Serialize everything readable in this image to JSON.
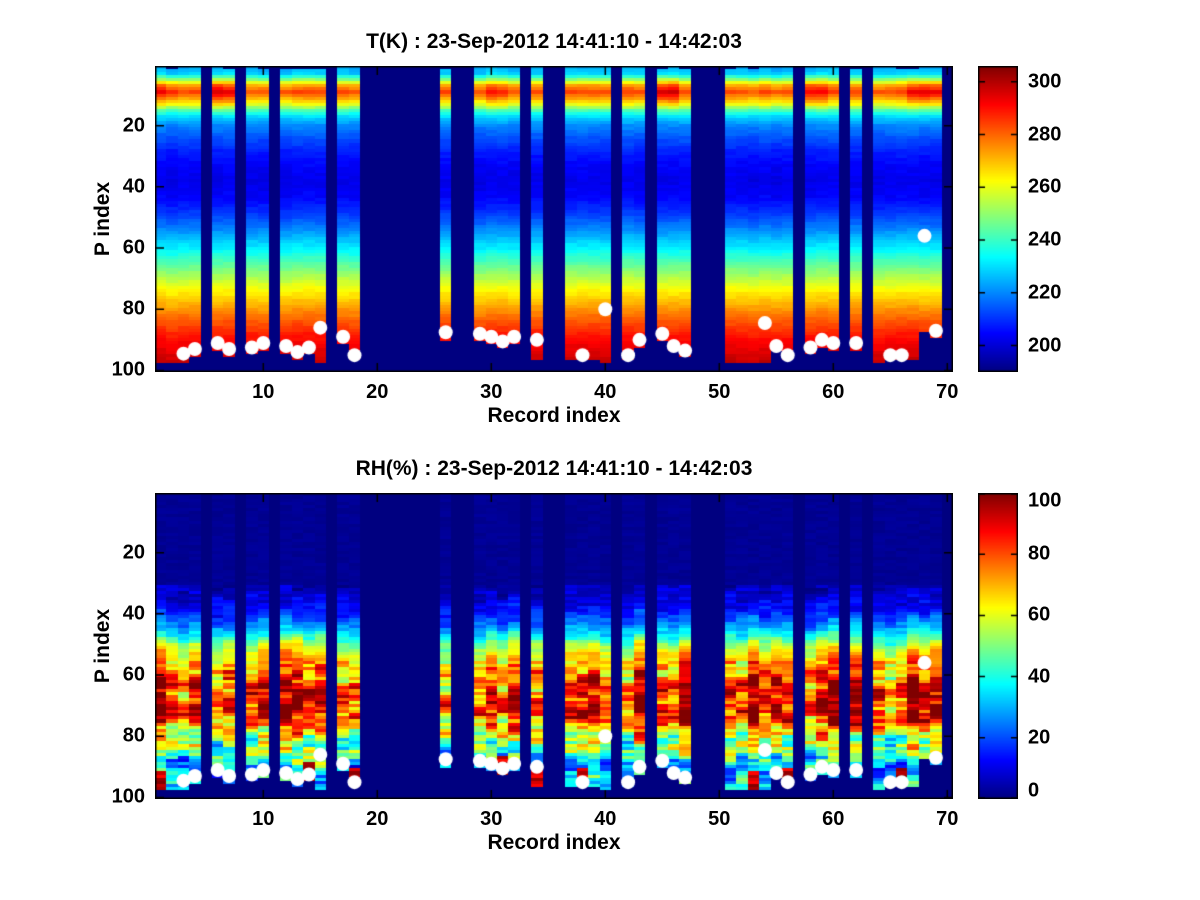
{
  "figure": {
    "background": "#ffffff",
    "text_color": "#000000",
    "axis_color": "#000000",
    "marker_color": "#ffffff"
  },
  "chart_data": [
    {
      "type": "heatmap",
      "title": "T(K) : 23-Sep-2012 14:41:10 - 14:42:03",
      "xlabel": "Record index",
      "ylabel": "P index",
      "x_ticks": [
        10,
        20,
        30,
        40,
        50,
        60,
        70
      ],
      "y_ticks": [
        20,
        40,
        60,
        80,
        100
      ],
      "x_range": [
        0.5,
        70.5
      ],
      "y_range": [
        0.5,
        100.5
      ],
      "y_axis_reversed": true,
      "n_records": 70,
      "n_levels": 100,
      "colormap": "jet",
      "grid": false,
      "colorbar": {
        "min": 190,
        "max": 306,
        "ticks": [
          200,
          220,
          240,
          260,
          280,
          300
        ]
      },
      "missing_records": [
        5,
        8,
        11,
        16,
        19,
        20,
        21,
        22,
        23,
        24,
        25,
        27,
        28,
        33,
        35,
        36,
        41,
        44,
        48,
        49,
        50,
        57,
        61,
        63,
        70
      ],
      "surface_p": [
        97.5,
        97.5,
        97,
        95.5,
        null,
        93.5,
        95,
        null,
        94.5,
        93,
        null,
        94,
        96,
        94.5,
        97,
        null,
        91,
        96.5,
        null,
        null,
        null,
        null,
        null,
        null,
        null,
        90,
        null,
        null,
        90,
        91,
        92.5,
        91,
        null,
        96,
        null,
        null,
        96,
        96.5,
        96,
        97,
        null,
        96.5,
        92,
        null,
        90,
        93.5,
        95,
        null,
        null,
        null,
        97,
        97,
        97,
        97,
        93.5,
        96.5,
        null,
        94,
        92,
        93,
        null,
        93,
        null,
        97,
        96.5,
        96.5,
        96.5,
        87,
        89,
        null
      ],
      "profile": [
        [
          1,
          224
        ],
        [
          3,
          228
        ],
        [
          5,
          248
        ],
        [
          7,
          272
        ],
        [
          9,
          283
        ],
        [
          11,
          272
        ],
        [
          13,
          260
        ],
        [
          15,
          242
        ],
        [
          17,
          230
        ],
        [
          20,
          220
        ],
        [
          24,
          214
        ],
        [
          28,
          208
        ],
        [
          33,
          204
        ],
        [
          38,
          202
        ],
        [
          43,
          204
        ],
        [
          48,
          210
        ],
        [
          53,
          218
        ],
        [
          58,
          228
        ],
        [
          63,
          239
        ],
        [
          68,
          250
        ],
        [
          73,
          261
        ],
        [
          78,
          271
        ],
        [
          83,
          280
        ],
        [
          88,
          288
        ],
        [
          93,
          294
        ],
        [
          97,
          298
        ],
        [
          100,
          299
        ]
      ],
      "warm_band_boost": {
        "1": 8,
        "2": 5,
        "6": 14,
        "7": 10,
        "30": 6,
        "31": 4,
        "45": 12,
        "46": 14,
        "58": 10,
        "59": 8,
        "67": 8,
        "68": 12,
        "69": 10
      },
      "noise_amplitude": 3,
      "markers": [
        [
          3,
          94.5
        ],
        [
          4,
          93
        ],
        [
          6,
          91
        ],
        [
          7,
          93
        ],
        [
          9,
          92.5
        ],
        [
          10,
          91
        ],
        [
          12,
          92
        ],
        [
          13,
          94
        ],
        [
          14,
          92.5
        ],
        [
          15,
          86
        ],
        [
          17,
          89
        ],
        [
          18,
          95
        ],
        [
          26,
          87.5
        ],
        [
          29,
          88
        ],
        [
          30,
          89
        ],
        [
          31,
          90.5
        ],
        [
          32,
          89
        ],
        [
          34,
          90
        ],
        [
          38,
          95
        ],
        [
          40,
          80
        ],
        [
          42,
          95
        ],
        [
          43,
          90
        ],
        [
          45,
          88
        ],
        [
          46,
          92
        ],
        [
          47,
          93.5
        ],
        [
          54,
          84.5
        ],
        [
          55,
          92
        ],
        [
          56,
          95
        ],
        [
          58,
          92.5
        ],
        [
          59,
          90
        ],
        [
          60,
          91
        ],
        [
          62,
          91
        ],
        [
          65,
          95
        ],
        [
          66,
          95
        ],
        [
          68,
          56
        ],
        [
          69,
          87
        ]
      ]
    },
    {
      "type": "heatmap",
      "title": "RH(%) : 23-Sep-2012 14:41:10 - 14:42:03",
      "xlabel": "Record index",
      "ylabel": "P index",
      "x_ticks": [
        10,
        20,
        30,
        40,
        50,
        60,
        70
      ],
      "y_ticks": [
        20,
        40,
        60,
        80,
        100
      ],
      "x_range": [
        0.5,
        70.5
      ],
      "y_range": [
        0.5,
        100.5
      ],
      "y_axis_reversed": true,
      "n_records": 70,
      "n_levels": 100,
      "colormap": "jet",
      "grid": false,
      "colorbar": {
        "min": 0,
        "max": 100,
        "ticks": [
          0,
          20,
          40,
          60,
          80,
          100
        ]
      },
      "missing_records": [
        5,
        8,
        11,
        16,
        19,
        20,
        21,
        22,
        23,
        24,
        25,
        27,
        28,
        33,
        35,
        36,
        41,
        44,
        48,
        49,
        50,
        57,
        61,
        63,
        70
      ],
      "surface_p": [
        97.5,
        97.5,
        97,
        95.5,
        null,
        93.5,
        95,
        null,
        94.5,
        93,
        null,
        94,
        96,
        94.5,
        97,
        null,
        91,
        96.5,
        null,
        null,
        null,
        null,
        null,
        null,
        null,
        90,
        null,
        null,
        90,
        91,
        92.5,
        91,
        null,
        96,
        null,
        null,
        96,
        96.5,
        96,
        97,
        null,
        96.5,
        92,
        null,
        90,
        93.5,
        95,
        null,
        null,
        null,
        97,
        97,
        97,
        97,
        93.5,
        96.5,
        null,
        94,
        92,
        93,
        null,
        93,
        null,
        97,
        96.5,
        96.5,
        96.5,
        87,
        89,
        null
      ],
      "rh_start_p": 31,
      "profile": [
        [
          1,
          1
        ],
        [
          28,
          2
        ],
        [
          32,
          5
        ],
        [
          35,
          9
        ],
        [
          38,
          13
        ],
        [
          41,
          18
        ],
        [
          44,
          27
        ],
        [
          47,
          40
        ],
        [
          50,
          54
        ],
        [
          53,
          63
        ],
        [
          56,
          70
        ],
        [
          59,
          76
        ],
        [
          62,
          80
        ],
        [
          65,
          84
        ],
        [
          68,
          88
        ],
        [
          71,
          91
        ],
        [
          73,
          86
        ],
        [
          76,
          72
        ],
        [
          79,
          63
        ],
        [
          82,
          52
        ],
        [
          85,
          46
        ],
        [
          88,
          39
        ],
        [
          91,
          33
        ],
        [
          94,
          31
        ],
        [
          97,
          36
        ],
        [
          100,
          36
        ]
      ],
      "wet_surface_records": [
        1,
        14,
        18,
        31,
        34,
        38,
        53,
        56,
        66
      ],
      "noise_amplitude": 26,
      "markers": [
        [
          3,
          94.5
        ],
        [
          4,
          93
        ],
        [
          6,
          91
        ],
        [
          7,
          93
        ],
        [
          9,
          92.5
        ],
        [
          10,
          91
        ],
        [
          12,
          92
        ],
        [
          13,
          94
        ],
        [
          14,
          92.5
        ],
        [
          15,
          86
        ],
        [
          17,
          89
        ],
        [
          18,
          95
        ],
        [
          26,
          87.5
        ],
        [
          29,
          88
        ],
        [
          30,
          89
        ],
        [
          31,
          90.5
        ],
        [
          32,
          89
        ],
        [
          34,
          90
        ],
        [
          38,
          95
        ],
        [
          40,
          80
        ],
        [
          42,
          95
        ],
        [
          43,
          90
        ],
        [
          45,
          88
        ],
        [
          46,
          92
        ],
        [
          47,
          93.5
        ],
        [
          54,
          84.5
        ],
        [
          55,
          92
        ],
        [
          56,
          95
        ],
        [
          58,
          92.5
        ],
        [
          59,
          90
        ],
        [
          60,
          91
        ],
        [
          62,
          91
        ],
        [
          65,
          95
        ],
        [
          66,
          95
        ],
        [
          68,
          56
        ],
        [
          69,
          87
        ]
      ]
    }
  ]
}
